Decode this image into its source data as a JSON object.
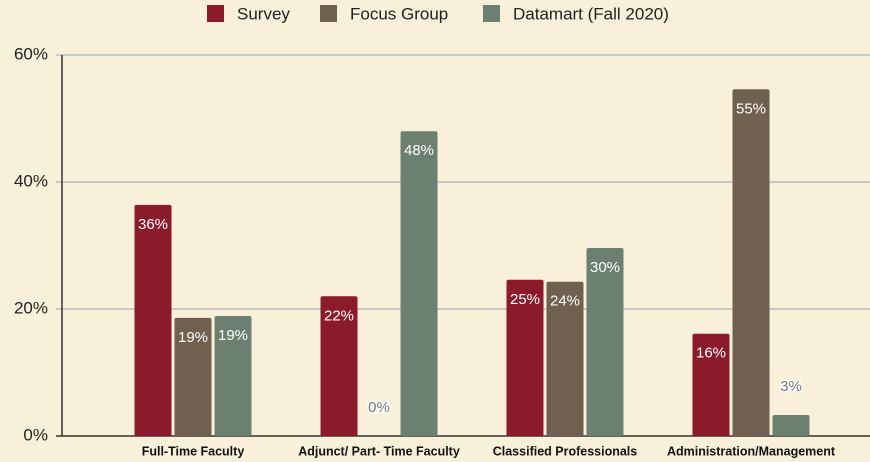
{
  "chart_data": {
    "type": "bar",
    "categories": [
      "Full-Time Faculty",
      "Adjunct/ Part- Time Faculty",
      "Classified Professionals",
      "Administration/Management"
    ],
    "series": [
      {
        "name": "Survey",
        "color": "#8b1a2b",
        "values": [
          36.4,
          22.0,
          24.6,
          16.1
        ],
        "value_labels": [
          "36%",
          "22%",
          "25%",
          "16%"
        ]
      },
      {
        "name": "Focus Group",
        "color": "#6f604f",
        "values": [
          18.6,
          0,
          24.3,
          54.6
        ],
        "value_labels": [
          "19%",
          "0%",
          "24%",
          "55%"
        ]
      },
      {
        "name": "Datamart (Fall 2020)",
        "color": "#6b8070",
        "values": [
          18.9,
          48.0,
          29.6,
          3.3
        ],
        "value_labels": [
          "19%",
          "48%",
          "30%",
          "3%"
        ]
      }
    ],
    "ylim": [
      0,
      60
    ],
    "yticks": [
      {
        "value": 0,
        "label": "0%"
      },
      {
        "value": 20,
        "label": "20%"
      },
      {
        "value": 40,
        "label": "40%"
      },
      {
        "value": 60,
        "label": "60%"
      }
    ],
    "grid": true,
    "legend": "top"
  }
}
